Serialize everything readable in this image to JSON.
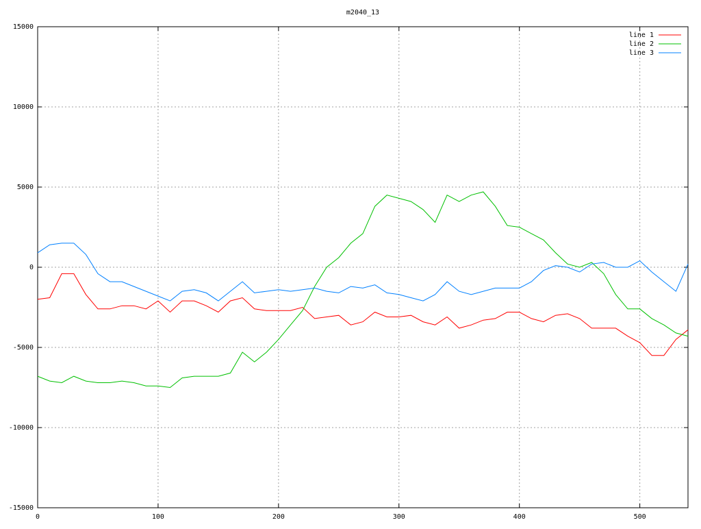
{
  "chart_data": {
    "type": "line",
    "title": "m2040_13",
    "x": [
      0,
      10,
      20,
      30,
      40,
      50,
      60,
      70,
      80,
      90,
      100,
      110,
      120,
      130,
      140,
      150,
      160,
      170,
      180,
      190,
      200,
      210,
      220,
      230,
      240,
      250,
      260,
      270,
      280,
      290,
      300,
      310,
      320,
      330,
      340,
      350,
      360,
      370,
      380,
      390,
      400,
      410,
      420,
      430,
      440,
      450,
      460,
      470,
      480,
      490,
      500,
      510,
      520,
      530,
      540
    ],
    "series": [
      {
        "name": "line 1",
        "color": "#ff0000",
        "values": [
          -2000,
          -1900,
          -400,
          -400,
          -1700,
          -2600,
          -2600,
          -2400,
          -2400,
          -2600,
          -2100,
          -2800,
          -2100,
          -2100,
          -2400,
          -2800,
          -2100,
          -1900,
          -2600,
          -2700,
          -2700,
          -2700,
          -2500,
          -3200,
          -3100,
          -3000,
          -3600,
          -3400,
          -2800,
          -3100,
          -3100,
          -3000,
          -3400,
          -3600,
          -3100,
          -3800,
          -3600,
          -3300,
          -3200,
          -2800,
          -2800,
          -3200,
          -3400,
          -3000,
          -2900,
          -3200,
          -3800,
          -3800,
          -3800,
          -4300,
          -4700,
          -5500,
          -5500,
          -4500,
          -3900
        ]
      },
      {
        "name": "line 2",
        "color": "#00c000",
        "values": [
          -6800,
          -7100,
          -7200,
          -6800,
          -7100,
          -7200,
          -7200,
          -7100,
          -7200,
          -7400,
          -7400,
          -7500,
          -6900,
          -6800,
          -6800,
          -6800,
          -6600,
          -5300,
          -5900,
          -5300,
          -4500,
          -3600,
          -2700,
          -1200,
          0,
          600,
          1500,
          2100,
          3800,
          4500,
          4300,
          4100,
          3600,
          2800,
          4500,
          4100,
          4500,
          4700,
          3800,
          2600,
          2500,
          2100,
          1700,
          900,
          200,
          0,
          300,
          -400,
          -1700,
          -2600,
          -2600,
          -3200,
          -3600,
          -4100,
          -4300
        ]
      },
      {
        "name": "line 3",
        "color": "#0080ff",
        "values": [
          900,
          1400,
          1500,
          1500,
          800,
          -400,
          -900,
          -900,
          -1200,
          -1500,
          -1800,
          -2100,
          -1500,
          -1400,
          -1600,
          -2100,
          -1500,
          -900,
          -1600,
          -1500,
          -1400,
          -1500,
          -1400,
          -1300,
          -1500,
          -1600,
          -1200,
          -1300,
          -1100,
          -1600,
          -1700,
          -1900,
          -2100,
          -1700,
          -900,
          -1500,
          -1700,
          -1500,
          -1300,
          -1300,
          -1300,
          -900,
          -200,
          100,
          0,
          -300,
          200,
          300,
          0,
          0,
          400,
          -300,
          -900,
          -1500,
          200
        ]
      }
    ],
    "xlim": [
      0,
      540
    ],
    "xticks": [
      0,
      100,
      200,
      300,
      400,
      500
    ],
    "ylim": [
      -15000,
      15000
    ],
    "yticks": [
      -15000,
      -10000,
      -5000,
      0,
      5000,
      10000,
      15000
    ],
    "grid": true,
    "legend": "top-right"
  }
}
